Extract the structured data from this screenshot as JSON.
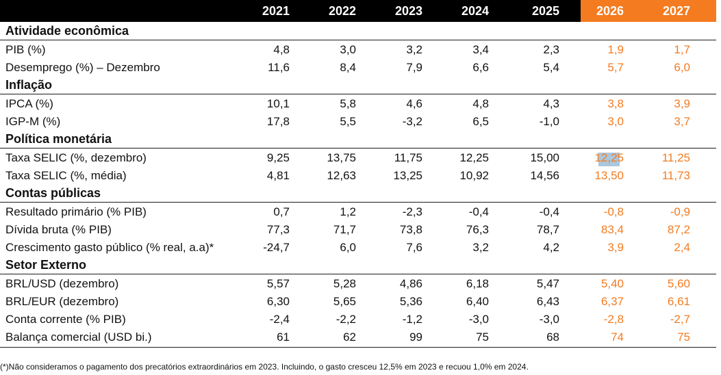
{
  "years": [
    "2021",
    "2022",
    "2023",
    "2024",
    "2025",
    "2026",
    "2027"
  ],
  "projection_color": "#f47b20",
  "sections": [
    {
      "title": "Atividade econômica",
      "rows": [
        {
          "label": "PIB (%)",
          "values": [
            "4,8",
            "3,0",
            "3,2",
            "3,4",
            "2,3",
            "1,9",
            "1,7"
          ]
        },
        {
          "label": "Desemprego (%) – Dezembro",
          "values": [
            "11,6",
            "8,4",
            "7,9",
            "6,6",
            "5,4",
            "5,7",
            "6,0"
          ]
        }
      ]
    },
    {
      "title": "Inflação",
      "rows": [
        {
          "label": "IPCA (%)",
          "values": [
            "10,1",
            "5,8",
            "4,6",
            "4,8",
            "4,3",
            "3,8",
            "3,9"
          ]
        },
        {
          "label": "IGP-M (%)",
          "values": [
            "17,8",
            "5,5",
            "-3,2",
            "6,5",
            "-1,0",
            "3,0",
            "3,7"
          ]
        }
      ]
    },
    {
      "title": "Política monetária",
      "rows": [
        {
          "label": "Taxa SELIC (%, dezembro)",
          "values": [
            "9,25",
            "13,75",
            "11,75",
            "12,25",
            "15,00",
            "12,25",
            "11,25"
          ]
        },
        {
          "label": "Taxa SELIC (%, média)",
          "values": [
            "4,81",
            "12,63",
            "13,25",
            "10,92",
            "14,56",
            "13,50",
            "11,73"
          ]
        }
      ]
    },
    {
      "title": "Contas públicas",
      "rows": [
        {
          "label": "Resultado primário (% PIB)",
          "values": [
            "0,7",
            "1,2",
            "-2,3",
            "-0,4",
            "-0,4",
            "-0,8",
            "-0,9"
          ]
        },
        {
          "label": "Dívida bruta (% PIB)",
          "values": [
            "77,3",
            "71,7",
            "73,8",
            "76,3",
            "78,7",
            "83,4",
            "87,2"
          ]
        },
        {
          "label": "Crescimento gasto público (% real, a.a)*",
          "values": [
            "-24,7",
            "6,0",
            "7,6",
            "3,2",
            "4,2",
            "3,9",
            "2,4"
          ]
        }
      ]
    },
    {
      "title": "Setor Externo",
      "rows": [
        {
          "label": "BRL/USD (dezembro)",
          "values": [
            "5,57",
            "5,28",
            "4,86",
            "6,18",
            "5,47",
            "5,40",
            "5,60"
          ]
        },
        {
          "label": "BRL/EUR (dezembro)",
          "values": [
            "6,30",
            "5,65",
            "5,36",
            "6,40",
            "6,43",
            "6,37",
            "6,61"
          ]
        },
        {
          "label": "Conta corrente (% PIB)",
          "values": [
            "-2,4",
            "-2,2",
            "-1,2",
            "-3,0",
            "-3,0",
            "-2,8",
            "-2,7"
          ]
        },
        {
          "label": "Balança comercial (USD bi.)",
          "values": [
            "61",
            "62",
            "99",
            "75",
            "68",
            "74",
            "75"
          ]
        }
      ]
    }
  ],
  "footnote": "(*)Não consideramos o pagamento dos precatórios extraordinários em 2023. Incluindo, o gasto cresceu 12,5% em 2023 e recuou 1,0% em 2024."
}
